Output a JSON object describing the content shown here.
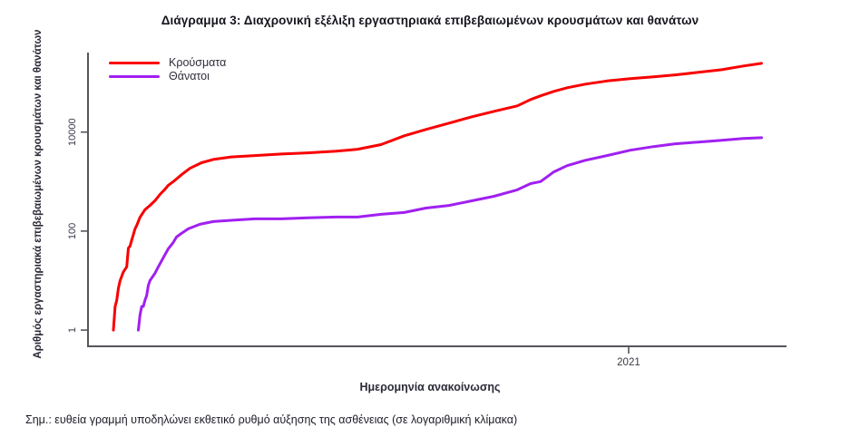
{
  "figure": {
    "title": "Διάγραμμα 3: Διαχρονική εξέλιξη εργαστηριακά επιβεβαιωμένων κρουσμάτων και θανάτων",
    "note": "Σημ.: ευθεία γραμμή υποδηλώνει εκθετικό ρυθμό αύξησης της ασθένειας (σε λογαριθμική κλίμακα)"
  },
  "chart_data": {
    "type": "line",
    "title": "Διάγραμμα 3: Διαχρονική εξέλιξη εργαστηριακά επιβεβαιωμένων κρουσμάτων και θανάτων",
    "x_axis": {
      "label": "Ημερομηνία ανακοίνωσης",
      "scale": "date-linear",
      "unit": "days_since_first_reported_case",
      "range_days": [
        -15.3,
        405
      ],
      "ticks": [
        {
          "label": "2021",
          "day": 310
        }
      ]
    },
    "y_axis": {
      "label": "Αριθμός εργαστηριακά επιβεβαιωμένων κρουσμάτων και θανάτων",
      "scale": "log10",
      "range": [
        0.47,
        404000
      ],
      "ticks": [
        {
          "label": "1",
          "value": 1
        },
        {
          "label": "100",
          "value": 100
        },
        {
          "label": "10000",
          "value": 10000
        }
      ]
    },
    "legend": {
      "position": "top-left"
    },
    "grid": false,
    "axis_color": "#55555c",
    "tick_text_color": "#3a3a46",
    "series": [
      {
        "id": "cases",
        "name": "Κρούσματα",
        "color": "#F80000",
        "points": [
          [
            0,
            1
          ],
          [
            1,
            3
          ],
          [
            2,
            4
          ],
          [
            3,
            7
          ],
          [
            4,
            10
          ],
          [
            6,
            15
          ],
          [
            8,
            19
          ],
          [
            9,
            45
          ],
          [
            10,
            50
          ],
          [
            11,
            66
          ],
          [
            12,
            85
          ],
          [
            13,
            110
          ],
          [
            14,
            130
          ],
          [
            16,
            190
          ],
          [
            19,
            270
          ],
          [
            22,
            330
          ],
          [
            25,
            410
          ],
          [
            28,
            550
          ],
          [
            31,
            700
          ],
          [
            33,
            840
          ],
          [
            37,
            1060
          ],
          [
            41,
            1380
          ],
          [
            46,
            1850
          ],
          [
            53,
            2400
          ],
          [
            60,
            2800
          ],
          [
            71,
            3150
          ],
          [
            85,
            3350
          ],
          [
            101,
            3600
          ],
          [
            117,
            3800
          ],
          [
            134,
            4100
          ],
          [
            147,
            4500
          ],
          [
            161,
            5600
          ],
          [
            175,
            8400
          ],
          [
            188,
            11300
          ],
          [
            202,
            15200
          ],
          [
            216,
            20500
          ],
          [
            229,
            26300
          ],
          [
            243,
            33800
          ],
          [
            251,
            45500
          ],
          [
            257,
            54000
          ],
          [
            265,
            66500
          ],
          [
            273,
            78500
          ],
          [
            284,
            93000
          ],
          [
            297,
            108000
          ],
          [
            311,
            120000
          ],
          [
            325,
            131000
          ],
          [
            338,
            143000
          ],
          [
            352,
            161000
          ],
          [
            366,
            182000
          ],
          [
            379,
            216000
          ],
          [
            390,
            245000
          ]
        ]
      },
      {
        "id": "deaths",
        "name": "Θάνατοι",
        "color": "#A020F0",
        "points": [
          [
            15,
            1
          ],
          [
            16,
            2
          ],
          [
            17,
            3
          ],
          [
            18,
            3
          ],
          [
            19,
            4
          ],
          [
            20,
            5
          ],
          [
            21,
            8
          ],
          [
            22,
            10
          ],
          [
            25,
            14
          ],
          [
            27,
            19
          ],
          [
            30,
            29
          ],
          [
            33,
            44
          ],
          [
            36,
            59
          ],
          [
            38,
            76
          ],
          [
            41,
            90
          ],
          [
            45,
            111
          ],
          [
            52,
            137
          ],
          [
            60,
            156
          ],
          [
            71,
            165
          ],
          [
            85,
            177
          ],
          [
            101,
            177
          ],
          [
            117,
            185
          ],
          [
            134,
            192
          ],
          [
            147,
            192
          ],
          [
            161,
            218
          ],
          [
            175,
            237
          ],
          [
            188,
            292
          ],
          [
            202,
            330
          ],
          [
            216,
            410
          ],
          [
            229,
            505
          ],
          [
            243,
            680
          ],
          [
            251,
            910
          ],
          [
            257,
            1000
          ],
          [
            265,
            1570
          ],
          [
            273,
            2100
          ],
          [
            284,
            2700
          ],
          [
            297,
            3350
          ],
          [
            311,
            4300
          ],
          [
            325,
            5100
          ],
          [
            338,
            5800
          ],
          [
            352,
            6300
          ],
          [
            366,
            6800
          ],
          [
            379,
            7400
          ],
          [
            390,
            7700
          ]
        ]
      }
    ]
  }
}
